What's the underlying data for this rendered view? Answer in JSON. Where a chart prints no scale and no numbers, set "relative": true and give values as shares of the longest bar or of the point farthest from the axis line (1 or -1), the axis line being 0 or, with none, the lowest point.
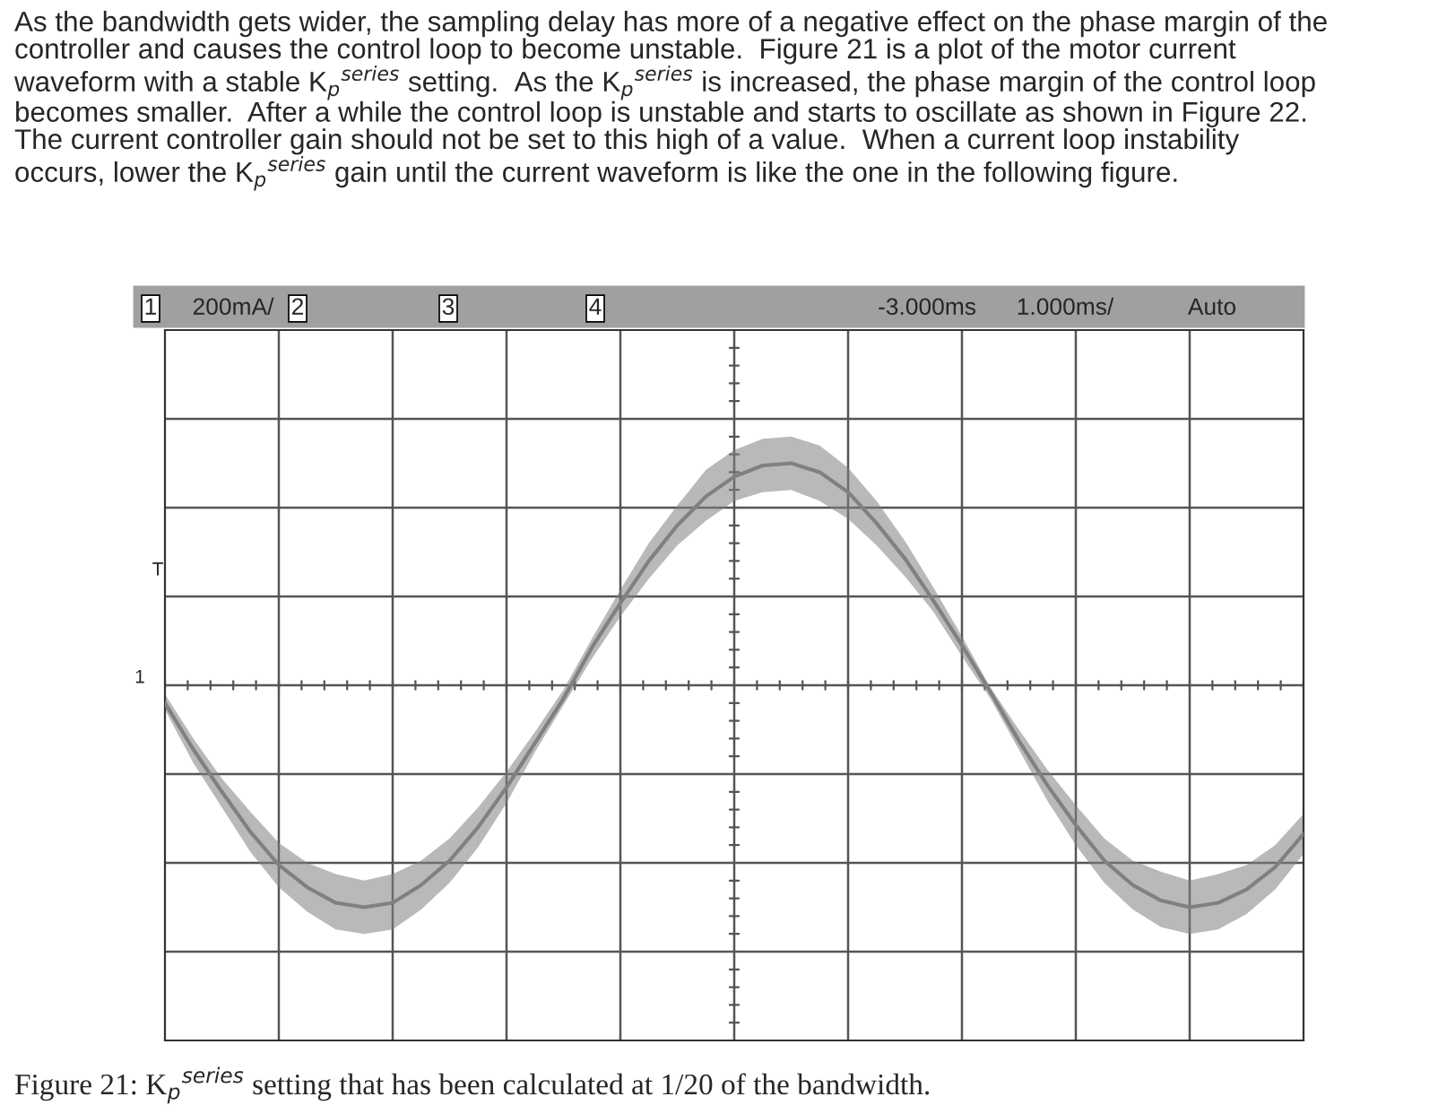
{
  "chart_data": {
    "type": "line",
    "title": "As the bandwidth gets wider, the sampling delay has more of a negative effect on the phase margin of the\ncontroller and causes the control loop to become unstable.  Figure 21 is a plot of the motor current\nwaveform with a stable K$_{p}$$^{series}$ setting.  As the K$_{p}$$^{series}$ is increased, the phase margin of the control loop\nbecomes smaller.  After a while the control loop is unstable and starts to oscillate as shown in Figure 22.\nThe current controller gain should not be set to this high of a value.  When a current loop instability\noccurs, lower the K$_{p}$$^{series}$ gain until the current waveform is like the one in the following figure.",
    "annotations": [
      "1",
      "200mA/",
      "2",
      "3",
      "4",
      "-3.000ms",
      "1.000ms/",
      "Auto",
      "T",
      "1",
      "Figure 21: K$_{p}$$^{series}$ setting that has been calculated at 1/20 of the bandwidth."
    ],
    "relative": true,
    "grid": true,
    "categories": [
      null,
      null,
      null,
      null,
      null,
      null,
      null,
      null,
      null,
      null,
      null,
      null,
      null,
      null,
      null,
      null,
      null,
      null,
      null,
      null,
      null,
      null,
      null,
      null,
      null,
      null,
      null,
      null,
      null,
      null,
      null,
      null,
      null,
      null,
      null,
      null,
      null,
      null,
      null,
      null,
      null
    ],
    "series": [
      {
        "color": "#808080",
        "values": [
          -0.08,
          -0.29,
          -0.48,
          -0.66,
          -0.81,
          -0.91,
          -0.98,
          -1.0,
          -0.98,
          -0.9,
          -0.79,
          -0.64,
          -0.46,
          -0.26,
          -0.06,
          0.17,
          0.37,
          0.56,
          0.72,
          0.85,
          0.94,
          0.99,
          1.0,
          0.96,
          0.87,
          0.73,
          0.57,
          0.38,
          0.18,
          -0.03,
          -0.25,
          -0.45,
          -0.63,
          -0.79,
          -0.9,
          -0.97,
          -1.0,
          -0.98,
          -0.92,
          -0.82,
          -0.67
        ],
        "lower": [
          -0.11,
          -0.35,
          -0.55,
          -0.75,
          -0.91,
          -1.02,
          -1.1,
          -1.12,
          -1.1,
          -1.01,
          -0.89,
          -0.73,
          -0.53,
          -0.3,
          -0.09,
          0.12,
          0.31,
          0.48,
          0.63,
          0.74,
          0.83,
          0.87,
          0.88,
          0.83,
          0.75,
          0.63,
          0.49,
          0.33,
          0.13,
          -0.06,
          -0.29,
          -0.52,
          -0.72,
          -0.89,
          -1.01,
          -1.09,
          -1.12,
          -1.1,
          -1.03,
          -0.92,
          -0.76
        ],
        "upper": [
          -0.04,
          -0.24,
          -0.42,
          -0.57,
          -0.71,
          -0.8,
          -0.85,
          -0.88,
          -0.85,
          -0.79,
          -0.69,
          -0.55,
          -0.39,
          -0.21,
          -0.02,
          0.21,
          0.43,
          0.64,
          0.81,
          0.97,
          1.06,
          1.11,
          1.12,
          1.08,
          0.98,
          0.83,
          0.65,
          0.44,
          0.22,
          -0.01,
          -0.2,
          -0.38,
          -0.54,
          -0.69,
          -0.79,
          -0.84,
          -0.88,
          -0.85,
          -0.81,
          -0.72,
          -0.58
        ]
      }
    ]
  }
}
